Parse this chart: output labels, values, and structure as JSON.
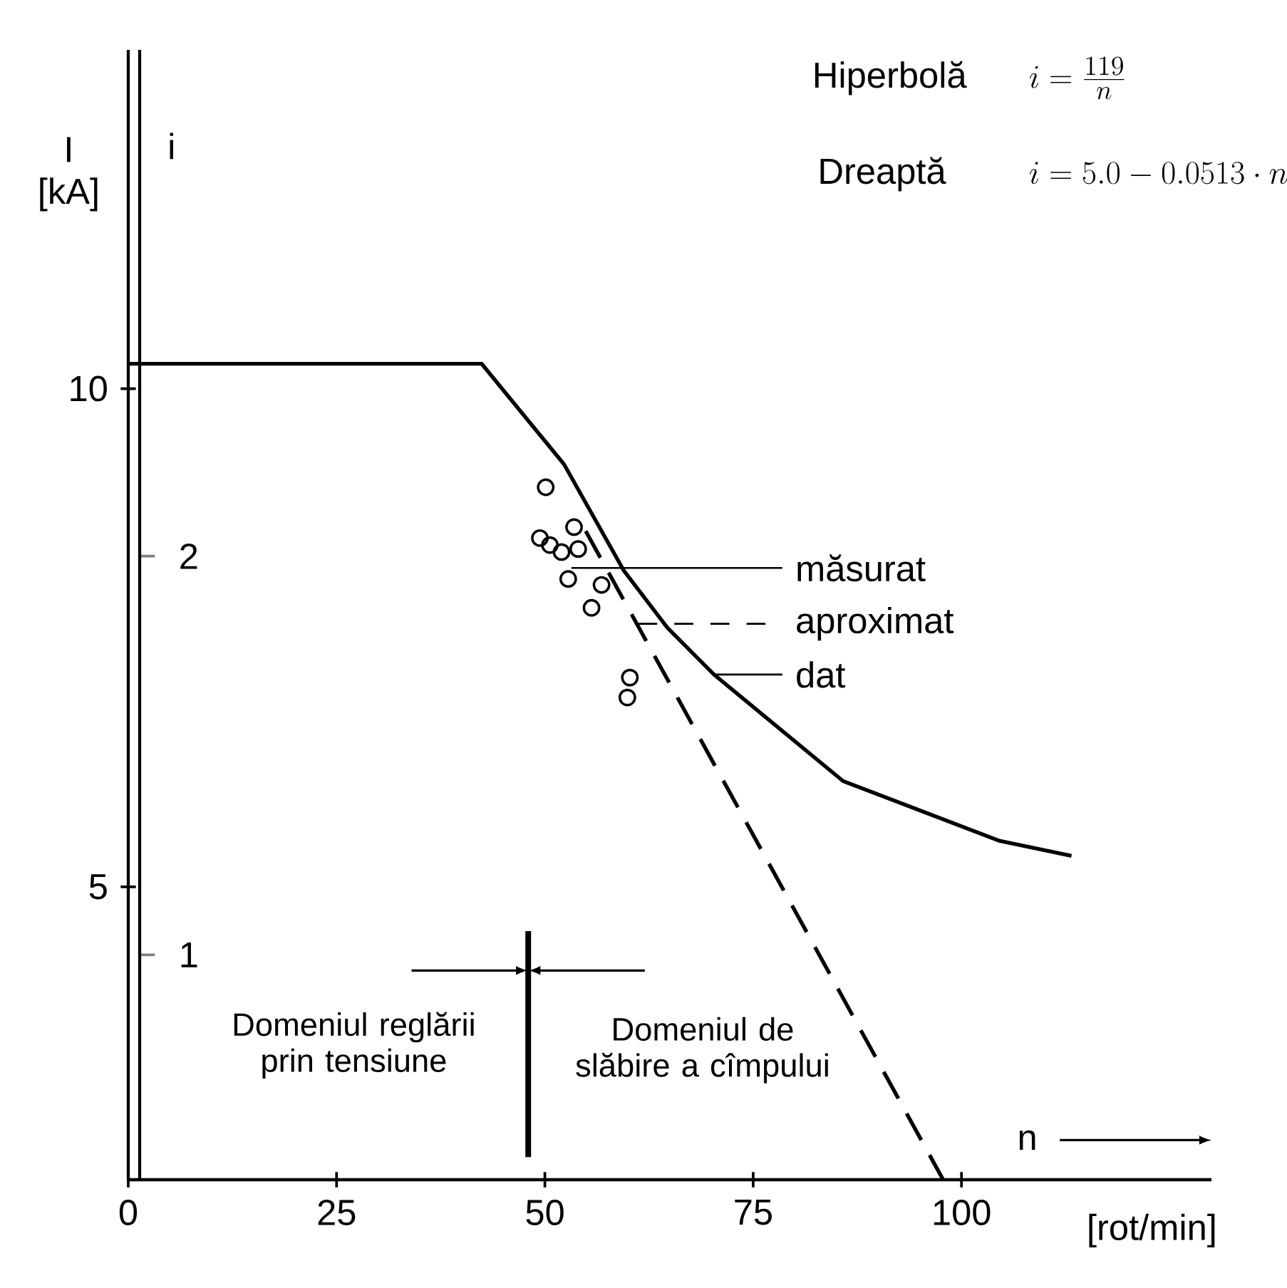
{
  "chart_data": {
    "type": "line",
    "xlabel": "n",
    "ylabel": "I [kA]",
    "y2label": "i",
    "legend": "right",
    "xlim": [
      0,
      130
    ],
    "xticks": [
      0,
      25,
      50,
      75,
      100
    ],
    "ylim": [
      2.06,
      13.4
    ],
    "yticks": [
      5,
      10
    ],
    "y2lim": [
      0.436,
      3.27
    ],
    "y2ticks": [
      1,
      2
    ],
    "annotations": [
      "Hiperbolă",
      "i = \\frac{119}{n}",
      "Dreaptă",
      "i = 5.0 - 0.0513 \\cdot n",
      {
        "text": "Domeniul reglării prin tensiune",
        "x": 48,
        "y": 4.16
      },
      {
        "text": "Domeniul de slăbire a cîmpului",
        "x": 48,
        "y": 4.16
      },
      "[rot/min]"
    ],
    "ref_lines": [
      {
        "axis": "x",
        "value": 48
      }
    ],
    "series": [
      {
        "name": "măsurat",
        "type": "scatter",
        "marker": "circle",
        "color": "#000000",
        "x": [
          50.1,
          53.5,
          49.4,
          50.6,
          52.0,
          54.0,
          52.8,
          56.8,
          55.6,
          60.2,
          59.9
        ],
        "values": [
          9.01,
          8.61,
          8.5,
          8.43,
          8.36,
          8.39,
          8.09,
          8.03,
          7.8,
          7.1,
          6.9
        ]
      },
      {
        "name": "aproximat",
        "type": "line",
        "line_style": "dashed",
        "color": "#000000",
        "x": [
          54.9,
          97.8
        ],
        "values": [
          8.57,
          2.06
        ]
      },
      {
        "name": "dat",
        "type": "line",
        "line_style": "solid",
        "color": "#000000",
        "x": [
          0,
          42.4,
          52.3,
          59.5,
          64.7,
          70.3,
          85.8,
          104.6,
          113.2
        ],
        "values": [
          10.25,
          10.25,
          9.24,
          8.17,
          7.6,
          7.13,
          6.06,
          5.46,
          5.31
        ]
      }
    ]
  }
}
